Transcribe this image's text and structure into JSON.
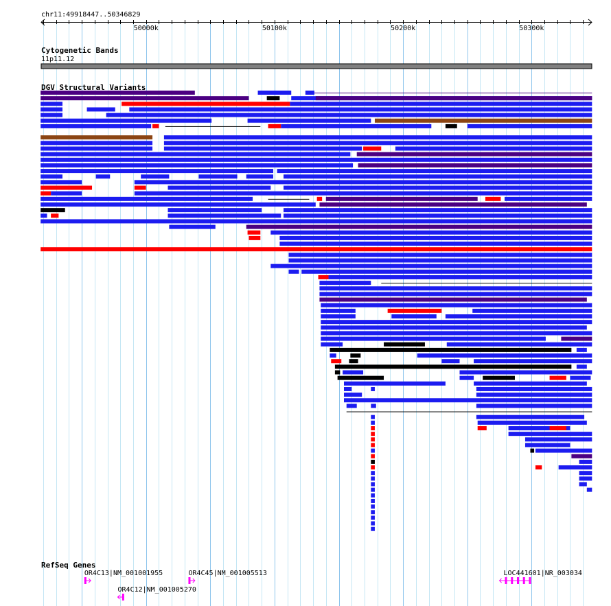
{
  "view": {
    "chrom_label": "chr11:49918447..50346829",
    "start_kb": 49918.447,
    "end_kb": 50346.829
  },
  "ruler": {
    "tick_labels": [
      {
        "kb": 50000,
        "label": "50000k"
      },
      {
        "kb": 50100,
        "label": "50100k"
      },
      {
        "kb": 50200,
        "label": "50200k"
      },
      {
        "kb": 50300,
        "label": "50300k"
      }
    ]
  },
  "cytoband": {
    "title": "Cytogenetic Bands",
    "band_label": "11p11.12",
    "color": "#808080"
  },
  "dgv": {
    "title": "DGV Structural Variants",
    "colors": {
      "b": "#1c1cf0",
      "r": "#ff0000",
      "p": "#4b0082",
      "n": "#8b4513",
      "k": "#000000",
      "l": "#000000",
      "q": "#4b0082"
    },
    "rows": [
      [
        [
          49918,
          50038,
          "p"
        ],
        [
          50087,
          50113,
          "b"
        ],
        [
          50124,
          50131,
          "b"
        ],
        [
          50131,
          50347,
          "q"
        ]
      ],
      [
        [
          49918,
          50080,
          "p"
        ],
        [
          50094,
          50104,
          "k"
        ],
        [
          50113,
          50347,
          "b"
        ],
        [
          50132,
          50347,
          "p"
        ]
      ],
      [
        [
          49918,
          49935,
          "b"
        ],
        [
          49981,
          50112,
          "r"
        ],
        [
          50112,
          50347,
          "b"
        ]
      ],
      [
        [
          49918,
          49935,
          "b"
        ],
        [
          49954,
          49976,
          "b"
        ],
        [
          49987,
          50347,
          "b"
        ]
      ],
      [
        [
          49918,
          49935,
          "b"
        ],
        [
          49969,
          50347,
          "b"
        ]
      ],
      [
        [
          49918,
          50051,
          "b"
        ],
        [
          50079,
          50175,
          "b"
        ],
        [
          50178,
          50347,
          "n"
        ]
      ],
      [
        [
          49918,
          50004,
          "b"
        ],
        [
          50005,
          50010,
          "r"
        ],
        [
          50015,
          50089,
          "l"
        ],
        [
          50095,
          50105,
          "r"
        ],
        [
          50105,
          50222,
          "b"
        ],
        [
          50233,
          50242,
          "k"
        ],
        [
          50250,
          50347,
          "b"
        ]
      ],
      [],
      [
        [
          49918,
          50005,
          "n"
        ],
        [
          50014,
          50347,
          "b"
        ]
      ],
      [
        [
          49918,
          50005,
          "b"
        ],
        [
          50014,
          50347,
          "b"
        ]
      ],
      [
        [
          49918,
          50005,
          "b"
        ],
        [
          50014,
          50168,
          "b"
        ],
        [
          50169,
          50183,
          "r"
        ],
        [
          50194,
          50347,
          "b"
        ]
      ],
      [
        [
          49918,
          50159,
          "b"
        ],
        [
          50164,
          50347,
          "p"
        ]
      ],
      [
        [
          49918,
          50347,
          "b"
        ]
      ],
      [
        [
          49918,
          50161,
          "b"
        ],
        [
          50165,
          50347,
          "p"
        ]
      ],
      [
        [
          49918,
          50099,
          "b"
        ],
        [
          50102,
          50347,
          "b"
        ]
      ],
      [
        [
          49918,
          49935,
          "b"
        ],
        [
          49961,
          49972,
          "b"
        ],
        [
          49996,
          50018,
          "b"
        ],
        [
          50041,
          50071,
          "b"
        ],
        [
          50078,
          50099,
          "b"
        ],
        [
          50107,
          50347,
          "b"
        ]
      ],
      [
        [
          49918,
          49950,
          "b"
        ],
        [
          49991,
          50347,
          "b"
        ]
      ],
      [
        [
          49918,
          49958,
          "r"
        ],
        [
          49991,
          50000,
          "r"
        ],
        [
          50017,
          50097,
          "b"
        ],
        [
          50107,
          50347,
          "b"
        ]
      ],
      [
        [
          49918,
          49926,
          "r"
        ],
        [
          49926,
          49950,
          "b"
        ],
        [
          49991,
          50347,
          "b"
        ]
      ],
      [
        [
          49918,
          50083,
          "b"
        ],
        [
          50095,
          50127,
          "l"
        ],
        [
          50133,
          50137,
          "r"
        ],
        [
          50140,
          50258,
          "p"
        ],
        [
          50264,
          50276,
          "r"
        ],
        [
          50279,
          50347,
          "b"
        ]
      ],
      [
        [
          49918,
          50132,
          "b"
        ],
        [
          50135,
          50343,
          "p"
        ]
      ],
      [
        [
          49918,
          49937,
          "k"
        ],
        [
          50017,
          50090,
          "b"
        ],
        [
          50107,
          50347,
          "b"
        ]
      ],
      [
        [
          49918,
          49923,
          "b"
        ],
        [
          49926,
          49932,
          "r"
        ],
        [
          50017,
          50105,
          "b"
        ],
        [
          50107,
          50347,
          "b"
        ]
      ],
      [
        [
          49918,
          50347,
          "b"
        ]
      ],
      [
        [
          50018,
          50054,
          "b"
        ],
        [
          50078,
          50347,
          "p"
        ]
      ],
      [
        [
          50079,
          50089,
          "r"
        ],
        [
          50097,
          50347,
          "b"
        ]
      ],
      [
        [
          50080,
          50089,
          "r"
        ],
        [
          50104,
          50347,
          "b"
        ]
      ],
      [
        [
          50104,
          50347,
          "b"
        ]
      ],
      [
        [
          49918,
          50347,
          "r"
        ]
      ],
      [
        [
          50111,
          50347,
          "b"
        ]
      ],
      [
        [
          50111,
          50347,
          "b"
        ]
      ],
      [
        [
          50097,
          50347,
          "b"
        ]
      ],
      [
        [
          50111,
          50119,
          "b"
        ],
        [
          50121,
          50347,
          "b"
        ]
      ],
      [
        [
          50134,
          50142,
          "r"
        ],
        [
          50142,
          50347,
          "b"
        ]
      ],
      [
        [
          50135,
          50175,
          "b"
        ],
        [
          50183,
          50347,
          "l"
        ]
      ],
      [
        [
          50135,
          50347,
          "b"
        ]
      ],
      [
        [
          50135,
          50347,
          "b"
        ]
      ],
      [
        [
          50135,
          50343,
          "p"
        ]
      ],
      [
        [
          50136,
          50347,
          "b"
        ]
      ],
      [
        [
          50136,
          50163,
          "b"
        ],
        [
          50188,
          50230,
          "r"
        ],
        [
          50254,
          50347,
          "b"
        ]
      ],
      [
        [
          50136,
          50163,
          "b"
        ],
        [
          50191,
          50226,
          "b"
        ],
        [
          50233,
          50347,
          "b"
        ]
      ],
      [
        [
          50136,
          50347,
          "b"
        ]
      ],
      [
        [
          50136,
          50343,
          "b"
        ]
      ],
      [
        [
          50136,
          50347,
          "b"
        ]
      ],
      [
        [
          50136,
          50311,
          "b"
        ],
        [
          50323,
          50347,
          "p"
        ]
      ],
      [
        [
          50136,
          50153,
          "b"
        ],
        [
          50185,
          50217,
          "k"
        ],
        [
          50234,
          50347,
          "b"
        ]
      ],
      [
        [
          50143,
          50331,
          "k"
        ],
        [
          50335,
          50343,
          "b"
        ]
      ],
      [
        [
          50143,
          50148,
          "b"
        ],
        [
          50159,
          50167,
          "k"
        ],
        [
          50211,
          50347,
          "b"
        ]
      ],
      [
        [
          50144,
          50152,
          "r"
        ],
        [
          50158,
          50165,
          "k"
        ],
        [
          50230,
          50244,
          "b"
        ],
        [
          50255,
          50347,
          "b"
        ]
      ],
      [
        [
          50147,
          50331,
          "k"
        ],
        [
          50335,
          50343,
          "b"
        ]
      ],
      [
        [
          50147,
          50151,
          "k"
        ],
        [
          50153,
          50169,
          "b"
        ],
        [
          50244,
          50347,
          "b"
        ]
      ],
      [
        [
          50149,
          50185,
          "k"
        ],
        [
          50244,
          50255,
          "b"
        ],
        [
          50262,
          50287,
          "k"
        ],
        [
          50314,
          50327,
          "r"
        ],
        [
          50330,
          50346,
          "b"
        ]
      ],
      [
        [
          50154,
          50233,
          "b"
        ],
        [
          50255,
          50343,
          "b"
        ]
      ],
      [
        [
          50154,
          50160,
          "b"
        ],
        [
          50175,
          50178,
          "b"
        ],
        [
          50257,
          50347,
          "b"
        ]
      ],
      [
        [
          50154,
          50168,
          "b"
        ],
        [
          50257,
          50347,
          "b"
        ]
      ],
      [
        [
          50154,
          50347,
          "b"
        ]
      ],
      [
        [
          50156,
          50164,
          "b"
        ],
        [
          50175,
          50179,
          "b"
        ],
        [
          50257,
          50347,
          "b"
        ]
      ],
      [
        [
          50156,
          50347,
          "l"
        ]
      ],
      [
        [
          50175,
          50178,
          "b"
        ],
        [
          50257,
          50341,
          "b"
        ]
      ],
      [
        [
          50175,
          50178,
          "b"
        ],
        [
          50258,
          50343,
          "b"
        ]
      ],
      [
        [
          50175,
          50178,
          "r"
        ],
        [
          50258,
          50265,
          "r"
        ],
        [
          50282,
          50330,
          "b"
        ],
        [
          50314,
          50327,
          "r"
        ]
      ],
      [
        [
          50175,
          50178,
          "r"
        ],
        [
          50282,
          50347,
          "b"
        ]
      ],
      [
        [
          50175,
          50178,
          "r"
        ],
        [
          50295,
          50347,
          "b"
        ]
      ],
      [
        [
          50175,
          50178,
          "r"
        ],
        [
          50295,
          50330,
          "b"
        ]
      ],
      [
        [
          50175,
          50178,
          "b"
        ],
        [
          50299,
          50302,
          "k"
        ],
        [
          50303,
          50347,
          "b"
        ]
      ],
      [
        [
          50175,
          50178,
          "r"
        ],
        [
          50331,
          50347,
          "p"
        ]
      ],
      [
        [
          50175,
          50178,
          "k"
        ],
        [
          50337,
          50347,
          "b"
        ]
      ],
      [
        [
          50175,
          50178,
          "r"
        ],
        [
          50303,
          50308,
          "r"
        ],
        [
          50321,
          50347,
          "b"
        ]
      ],
      [
        [
          50175,
          50178,
          "b"
        ],
        [
          50337,
          50347,
          "b"
        ]
      ],
      [
        [
          50175,
          50178,
          "b"
        ],
        [
          50337,
          50347,
          "b"
        ]
      ],
      [
        [
          50175,
          50178,
          "b"
        ],
        [
          50337,
          50343,
          "b"
        ]
      ],
      [
        [
          50175,
          50178,
          "b"
        ],
        [
          50343,
          50347,
          "b"
        ]
      ],
      [
        [
          50175,
          50178,
          "b"
        ]
      ],
      [
        [
          50175,
          50178,
          "b"
        ]
      ],
      [
        [
          50175,
          50178,
          "b"
        ]
      ],
      [
        [
          50175,
          50178,
          "b"
        ]
      ],
      [
        [
          50175,
          50178,
          "b"
        ]
      ],
      [
        [
          50175,
          50178,
          "b"
        ]
      ],
      [
        [
          50175,
          50178,
          "b"
        ]
      ]
    ]
  },
  "refseq": {
    "title": "RefSeq Genes",
    "color": "#ff00ff",
    "genes": [
      {
        "label": "OR4C13|NM_001001955",
        "start": 49952,
        "end": 49957,
        "strand": "+",
        "line": 0
      },
      {
        "label": "OR4C45|NM_001005513",
        "start": 50033,
        "end": 50038,
        "strand": "+",
        "line": 0
      },
      {
        "label": "OR4C12|NM_001005270",
        "start": 49978,
        "end": 49983,
        "strand": "-",
        "line": 1
      },
      {
        "label": "LOC441601|NR_003034",
        "start": 50275,
        "end": 50299,
        "strand": "-",
        "line": 0
      }
    ]
  }
}
